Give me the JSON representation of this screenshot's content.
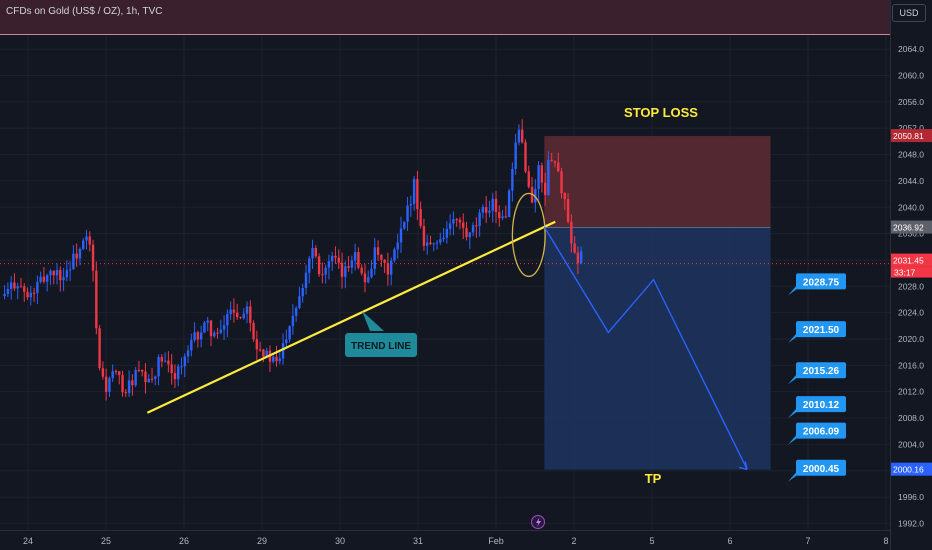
{
  "header": {
    "symbol_title": "CFDs on Gold (US$ / OZ), 1h, TVC",
    "currency_button": "USD"
  },
  "colors": {
    "background": "#131722",
    "bull_candle": "#2962ff",
    "bear_candle": "#f23645",
    "trend_line": "#ffeb3b",
    "stop_zone": "#5b2a33",
    "target_zone": "#1f3460",
    "projection": "#2962ff",
    "callout": "#2196f3"
  },
  "chart_data": {
    "type": "candlestick",
    "x_ticks": [
      "24",
      "25",
      "26",
      "29",
      "30",
      "31",
      "Feb",
      "2",
      "5",
      "6",
      "7",
      "8"
    ],
    "y_ticks": [
      1992,
      1996,
      2000,
      2004,
      2008,
      2012,
      2016,
      2020,
      2024,
      2028,
      2032,
      2036,
      2040,
      2044,
      2048,
      2052,
      2056,
      2060,
      2064
    ],
    "ylim": [
      1991.0,
      2066.0
    ],
    "price_labels": {
      "stop": "2050.81",
      "entry": "2036.92",
      "current": "2031.45",
      "countdown": "33:17",
      "target": "2000.16"
    },
    "levels": {
      "stop": 2050.81,
      "entry": 2036.92,
      "current": 2031.45,
      "target": 2000.16
    },
    "annotations": {
      "stop_loss": "STOP LOSS",
      "take_profit": "TP",
      "trend_line": "TREND LINE"
    },
    "target_callouts": [
      "2028.75",
      "2021.50",
      "2015.26",
      "2010.12",
      "2006.09",
      "2000.45"
    ],
    "target_callout_values": [
      2028.75,
      2021.5,
      2015.26,
      2010.12,
      2006.09,
      2000.45
    ],
    "trend_line_points": [
      [
        1.53,
        2008.8
      ],
      [
        6.76,
        2037.8
      ]
    ],
    "projection_path": [
      [
        6.62,
        2037.0
      ],
      [
        7.44,
        2021.0
      ],
      [
        8.02,
        2029.0
      ],
      [
        9.22,
        2000.2
      ]
    ],
    "zones": {
      "x_start": 6.62,
      "x_end": 9.52
    },
    "focus_ellipse": {
      "x": 6.42,
      "y": 2035.8,
      "rx": 0.21,
      "ry": 6.3
    },
    "price_path": [
      [
        -0.3,
        2026.5
      ],
      [
        -0.15,
        2029.0
      ],
      [
        0.0,
        2026.0
      ],
      [
        0.15,
        2028.5
      ],
      [
        0.3,
        2030.5
      ],
      [
        0.45,
        2029.5
      ],
      [
        0.6,
        2032.5
      ],
      [
        0.75,
        2035.0
      ],
      [
        0.82,
        2033.0
      ],
      [
        0.9,
        2016.0
      ],
      [
        1.0,
        2012.5
      ],
      [
        1.1,
        2015.0
      ],
      [
        1.25,
        2012.0
      ],
      [
        1.4,
        2015.0
      ],
      [
        1.55,
        2013.0
      ],
      [
        1.7,
        2017.0
      ],
      [
        1.85,
        2014.5
      ],
      [
        2.0,
        2016.5
      ],
      [
        2.15,
        2020.5
      ],
      [
        2.3,
        2022.0
      ],
      [
        2.45,
        2020.0
      ],
      [
        2.6,
        2025.0
      ],
      [
        2.75,
        2023.0
      ],
      [
        2.8,
        2026.5
      ],
      [
        2.9,
        2020.0
      ],
      [
        3.05,
        2017.5
      ],
      [
        3.2,
        2016.0
      ],
      [
        3.35,
        2022.5
      ],
      [
        3.5,
        2027.5
      ],
      [
        3.65,
        2034.5
      ],
      [
        3.75,
        2030.0
      ],
      [
        3.9,
        2032.0
      ],
      [
        4.05,
        2029.5
      ],
      [
        4.2,
        2034.0
      ],
      [
        4.3,
        2028.0
      ],
      [
        4.45,
        2033.0
      ],
      [
        4.6,
        2030.0
      ],
      [
        4.75,
        2034.5
      ],
      [
        4.88,
        2040.0
      ],
      [
        4.95,
        2044.0
      ],
      [
        5.05,
        2035.5
      ],
      [
        5.2,
        2034.0
      ],
      [
        5.35,
        2036.5
      ],
      [
        5.5,
        2038.0
      ],
      [
        5.65,
        2035.0
      ],
      [
        5.8,
        2038.5
      ],
      [
        5.95,
        2041.0
      ],
      [
        6.1,
        2037.5
      ],
      [
        6.22,
        2045.5
      ],
      [
        6.28,
        2052.0
      ],
      [
        6.35,
        2049.0
      ],
      [
        6.45,
        2040.0
      ],
      [
        6.55,
        2046.0
      ],
      [
        6.62,
        2042.0
      ],
      [
        6.7,
        2048.5
      ],
      [
        6.78,
        2046.0
      ],
      [
        6.85,
        2042.5
      ],
      [
        6.92,
        2038.0
      ],
      [
        6.97,
        2033.5
      ],
      [
        7.05,
        2031.0
      ],
      [
        7.12,
        2034.0
      ]
    ]
  }
}
